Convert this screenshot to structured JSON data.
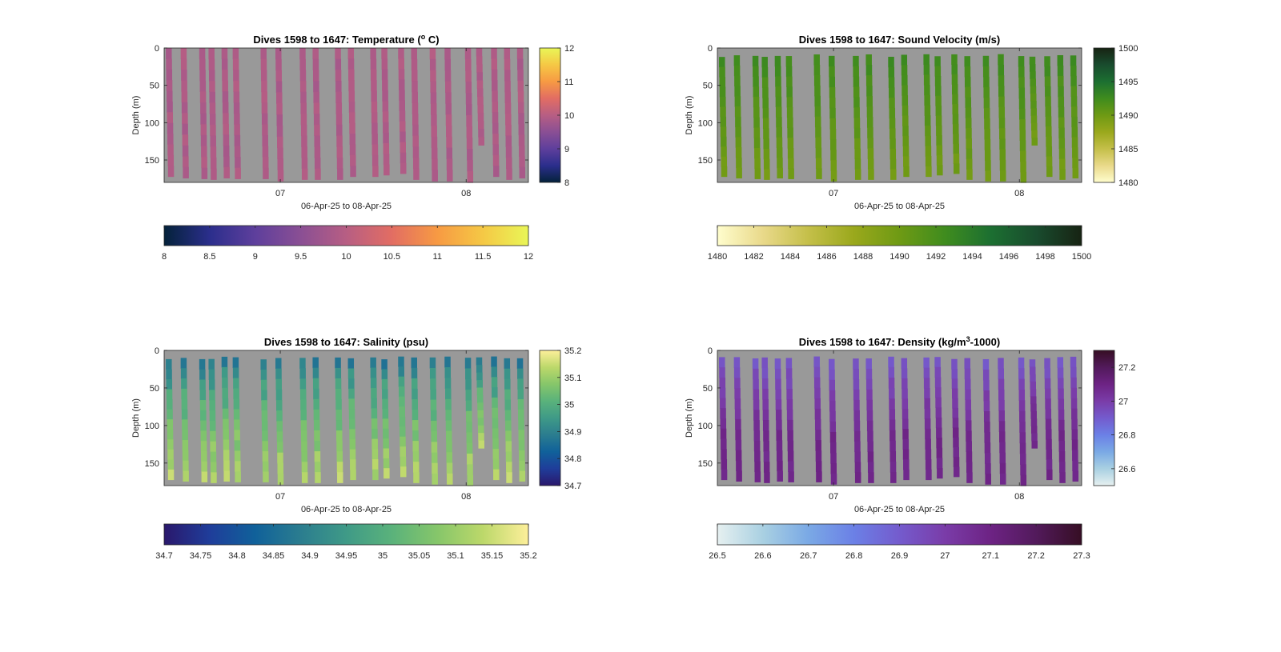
{
  "chart_data": [
    {
      "type": "heatmap",
      "variable": "temperature",
      "title_main": "Dives 1598 to 1647: Temperature (",
      "title_sup": "o",
      "title_post": " C)",
      "xlabel": "06-Apr-25 to 08-Apr-25",
      "ylabel": "Depth (m)",
      "x_ticks": [
        "07",
        "08"
      ],
      "ylim": [
        180,
        0
      ],
      "y_ticks": [
        0,
        50,
        100,
        150
      ],
      "clim": [
        8,
        12
      ],
      "colormap": "thermal",
      "colormap_stops": [
        "#04223a",
        "#2b2e8c",
        "#5e3f9c",
        "#8a4f94",
        "#b75e83",
        "#e26d63",
        "#f79a43",
        "#f5c845",
        "#e9f657"
      ],
      "side_colorbar_ticks": [
        8,
        9,
        10,
        11,
        12
      ],
      "bottom_colorbar_ticks": [
        "8",
        "8.5",
        "9",
        "9.5",
        "10",
        "10.5",
        "11",
        "11.5",
        "12"
      ],
      "profile_range": [
        9.6,
        10.1
      ]
    },
    {
      "type": "heatmap",
      "variable": "sound_velocity",
      "title_main": "Dives 1598 to 1647: Sound Velocity (m/s)",
      "title_sup": "",
      "title_post": "",
      "xlabel": "06-Apr-25 to 08-Apr-25",
      "ylabel": "Depth (m)",
      "x_ticks": [
        "07",
        "08"
      ],
      "ylim": [
        180,
        0
      ],
      "y_ticks": [
        0,
        50,
        100,
        150
      ],
      "clim": [
        1480,
        1500
      ],
      "colormap": "speed",
      "colormap_stops": [
        "#fffdcd",
        "#e9d98a",
        "#c4bf49",
        "#9aa81c",
        "#6e9a14",
        "#3f8c1e",
        "#1c6f31",
        "#194c2e",
        "#172313"
      ],
      "side_colorbar_ticks": [
        1480,
        1485,
        1490,
        1495,
        1500
      ],
      "bottom_colorbar_ticks": [
        "1480",
        "1482",
        "1484",
        "1486",
        "1488",
        "1490",
        "1492",
        "1494",
        "1496",
        "1498",
        "1500"
      ],
      "profile_range": [
        1488,
        1493
      ]
    },
    {
      "type": "heatmap",
      "variable": "salinity",
      "title_main": "Dives 1598 to 1647: Salinity (psu)",
      "title_sup": "",
      "title_post": "",
      "xlabel": "06-Apr-25 to 08-Apr-25",
      "ylabel": "Depth (m)",
      "x_ticks": [
        "07",
        "08"
      ],
      "ylim": [
        180,
        0
      ],
      "y_ticks": [
        0,
        50,
        100,
        150
      ],
      "clim": [
        34.7,
        35.2
      ],
      "colormap": "haline",
      "colormap_stops": [
        "#2a186c",
        "#1f3d9a",
        "#10619a",
        "#2b7d8f",
        "#3f9a87",
        "#5ab27b",
        "#86c66a",
        "#bcd86a",
        "#fdef9a"
      ],
      "side_colorbar_ticks": [
        34.7,
        34.8,
        34.9,
        35,
        35.1,
        35.2
      ],
      "bottom_colorbar_ticks": [
        "34.7",
        "34.75",
        "34.8",
        "34.85",
        "34.9",
        "34.95",
        "35",
        "35.05",
        "35.1",
        "35.15",
        "35.2"
      ],
      "profile_range": [
        34.8,
        35.16
      ]
    },
    {
      "type": "heatmap",
      "variable": "density",
      "title_main": "Dives 1598 to 1647: Density (kg/m",
      "title_sup": "3",
      "title_post": "-1000)",
      "xlabel": "06-Apr-25 to 08-Apr-25",
      "ylabel": "Depth (m)",
      "x_ticks": [
        "07",
        "08"
      ],
      "ylim": [
        180,
        0
      ],
      "y_ticks": [
        0,
        50,
        100,
        150
      ],
      "clim": [
        26.5,
        27.3
      ],
      "colormap": "dense",
      "colormap_stops": [
        "#e6f0f0",
        "#a9d0e2",
        "#7aa9e5",
        "#6b80e6",
        "#745bcd",
        "#7a3ca8",
        "#6d2384",
        "#521a5b",
        "#360e24"
      ],
      "side_colorbar_ticks": [
        26.6,
        26.8,
        27,
        27.2
      ],
      "bottom_colorbar_ticks": [
        "26.5",
        "26.6",
        "26.7",
        "26.8",
        "26.9",
        "27",
        "27.1",
        "27.2",
        "27.3"
      ],
      "profile_range": [
        26.85,
        27.1
      ]
    }
  ],
  "profiles": {
    "dive_times_days_from_apr6_0000": [
      0.4,
      0.48,
      0.58,
      0.63,
      0.7,
      0.76,
      0.91,
      0.99,
      1.12,
      1.19,
      1.31,
      1.38,
      1.5,
      1.56,
      1.65,
      1.72,
      1.82,
      1.9,
      2.01,
      2.07,
      2.15,
      2.22,
      2.29
    ],
    "max_depth_m": [
      172,
      174,
      175,
      176,
      174,
      175,
      175,
      178,
      176,
      176,
      176,
      172,
      172,
      170,
      168,
      176,
      178,
      178,
      180,
      130,
      172,
      176,
      174
    ]
  }
}
